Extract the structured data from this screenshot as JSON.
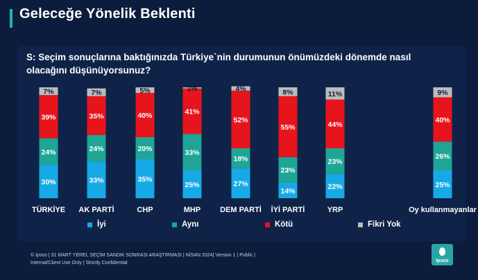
{
  "page": {
    "title": "Geleceğe Yönelik Beklenti",
    "question_line1": "S: Seçim sonuçlarına baktığınızda Türkiye`nin durumunun önümüzdeki dönemde nasıl",
    "question_line2": "olacağını düşünüyorsunuz?",
    "footer_line1": "© Ipsos | 31 MART YEREL SEÇİM SANDIK SONRASI ARAŞTIRMASI  | NİSAN 2024| Version 1 | Public |",
    "footer_line2": "Internal/Client Use Only | Strictly Confidential",
    "logo_text": "Ipsos"
  },
  "colors": {
    "background": "#0c1c3d",
    "panel": "#0f2349",
    "accent": "#1fb5b0",
    "iyi": "#17a9e6",
    "ayni": "#1ea596",
    "kotu": "#e8141c",
    "fikri_yok": "#bcbcbc"
  },
  "chart_data": {
    "type": "bar",
    "stacked": true,
    "categories": [
      "TÜRKİYE",
      "AK PARTİ",
      "CHP",
      "MHP",
      "DEM PARTİ",
      "İYİ PARTİ",
      "YRP",
      "Oy kullanmayanlar"
    ],
    "series": [
      {
        "name": "İyi",
        "values": [
          30,
          33,
          35,
          25,
          27,
          14,
          22,
          25
        ]
      },
      {
        "name": "Aynı",
        "values": [
          24,
          24,
          20,
          33,
          18,
          23,
          23,
          26
        ]
      },
      {
        "name": "Kötü",
        "values": [
          39,
          35,
          40,
          41,
          52,
          55,
          44,
          40
        ]
      },
      {
        "name": "Fikri Yok",
        "values": [
          7,
          7,
          5,
          1,
          4,
          8,
          11,
          9
        ]
      }
    ],
    "value_suffix": "%",
    "legend_position": "bottom",
    "grid": false
  }
}
